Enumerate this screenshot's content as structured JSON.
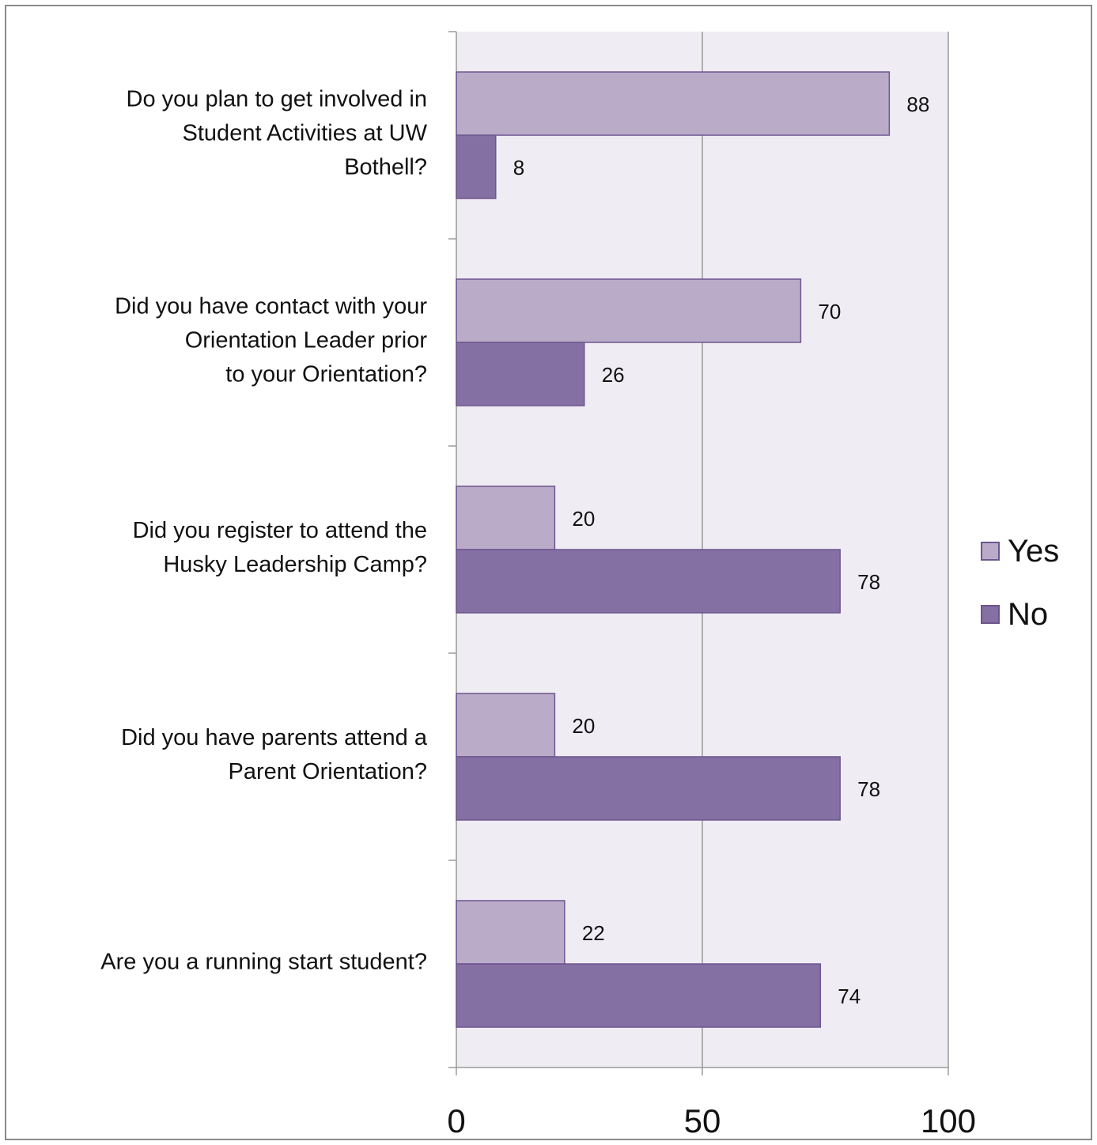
{
  "chart_data": {
    "type": "bar",
    "orientation": "horizontal",
    "categories": [
      "Do you plan to get involved in\nStudent Activities at UW\nBothell?",
      "Did you have contact with your\nOrientation Leader prior\nto your Orientation?",
      "Did you register to attend the\nHusky Leadership Camp?",
      "Did you have parents attend a\nParent Orientation?",
      "Are you a running start student?"
    ],
    "series": [
      {
        "name": "Yes",
        "color": "#baacc9",
        "values": [
          88,
          70,
          20,
          20,
          22
        ]
      },
      {
        "name": "No",
        "color": "#8470a2",
        "values": [
          8,
          26,
          78,
          78,
          74
        ]
      }
    ],
    "xlim": [
      0,
      100
    ],
    "xticks": [
      "0",
      "50",
      "100"
    ],
    "gridlines": true,
    "legend_position": "right",
    "plot_background": "#efedf3",
    "data_labels": true
  }
}
